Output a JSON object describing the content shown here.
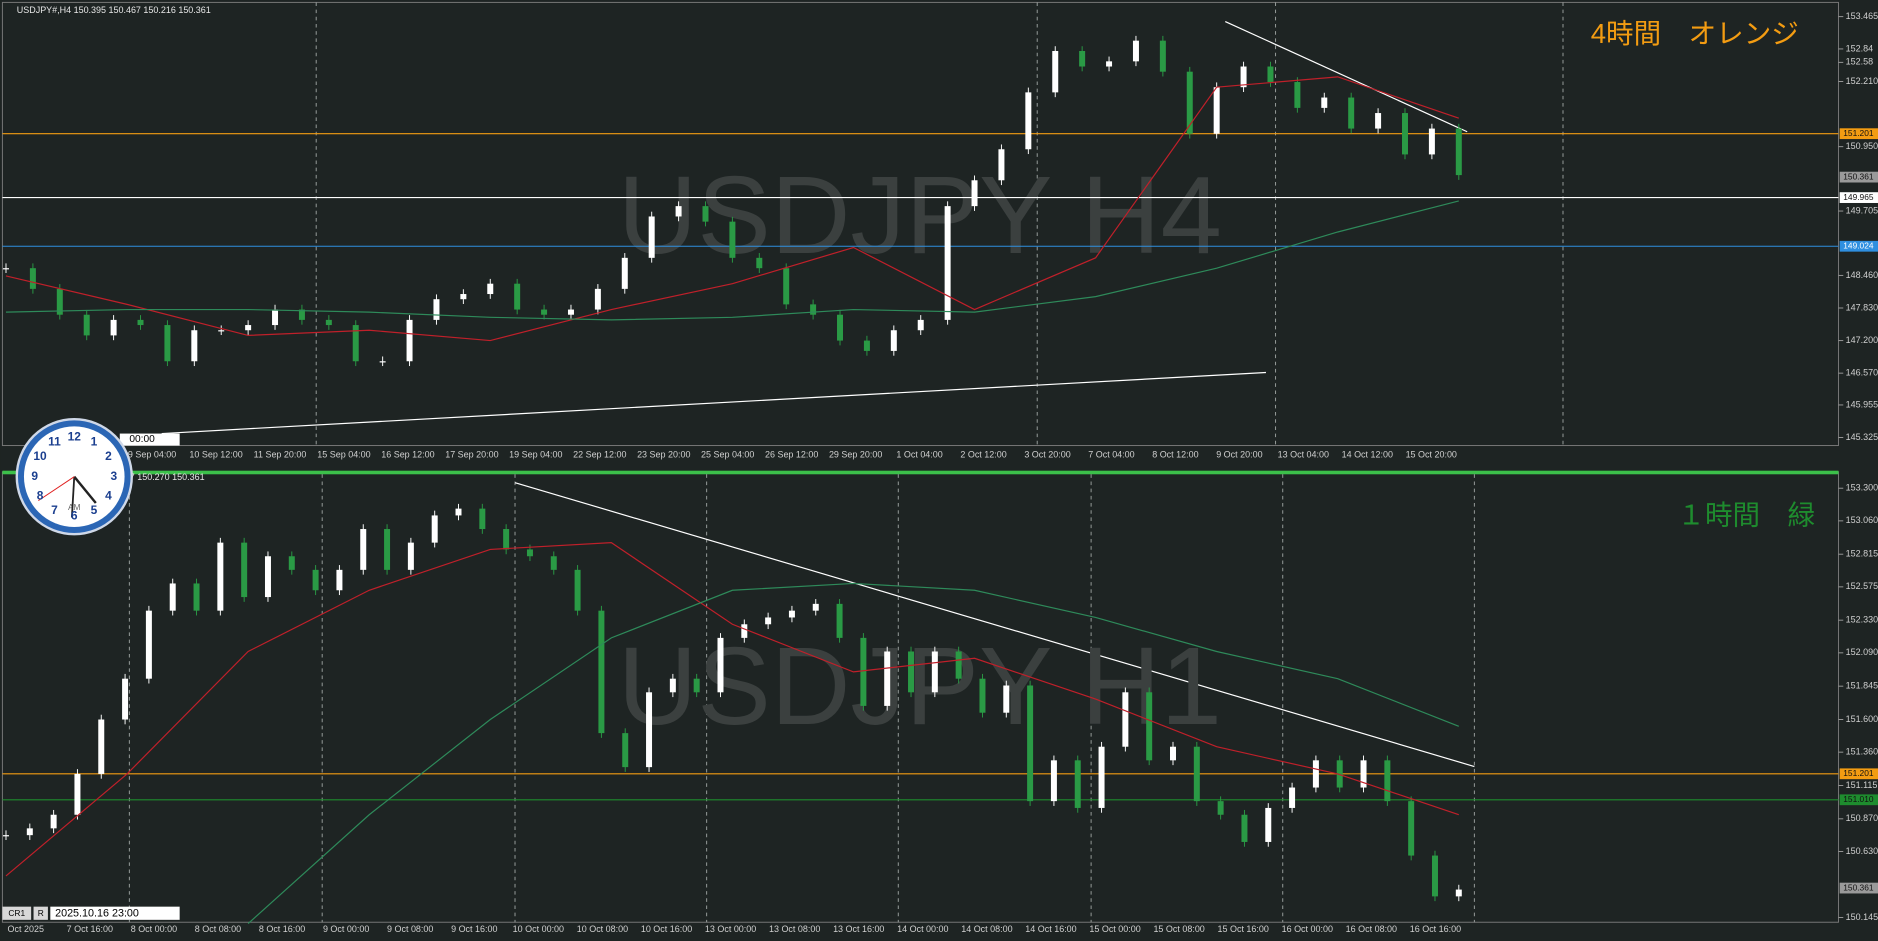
{
  "chart_data": [
    {
      "type": "candlestick",
      "header": "USDJPY#,H4  150.395 150.467 150.216 150.361",
      "watermark": "USDJPY H4",
      "annotation": "4時間　オレンジ",
      "annotation_color": "#f39c12",
      "ylim": [
        145.17,
        153.74
      ],
      "yticks": [
        153.465,
        152.84,
        {
          "value": 152.21,
          "label": "152.210"
        },
        152.58,
        {
          "value": 150.95,
          "label": "150.950"
        },
        149.705,
        {
          "value": 148.46,
          "label": "148.460"
        },
        {
          "value": 147.83,
          "label": "147.830"
        },
        {
          "value": 147.2,
          "label": "147.200"
        },
        {
          "value": 146.57,
          "label": "146.570"
        },
        145.955,
        145.325
      ],
      "levels": [
        {
          "price": 151.201,
          "color": "#f39c12"
        },
        {
          "price": 149.965,
          "color": "#ffffff"
        },
        {
          "price": 149.024,
          "color": "#2f8fe0"
        },
        {
          "price": 150.361,
          "color": "#9a9a9a"
        }
      ],
      "xlabels": [
        "9 Sep 04:00",
        "10 Sep 12:00",
        "11 Sep 20:00",
        "15 Sep 04:00",
        "16 Sep 12:00",
        "17 Sep 20:00",
        "19 Sep 04:00",
        "22 Sep 12:00",
        "23 Sep 20:00",
        "25 Sep 04:00",
        "26 Sep 12:00",
        "29 Sep 20:00",
        "1 Oct 04:00",
        "2 Oct 12:00",
        "3 Oct 20:00",
        "7 Oct 04:00",
        "8 Oct 12:00",
        "9 Oct 20:00",
        "13 Oct 04:00",
        "14 Oct 12:00",
        "15 Oct 20:00"
      ],
      "closes": [
        148.6,
        148.2,
        147.7,
        147.3,
        147.6,
        147.5,
        146.8,
        147.4,
        147.4,
        147.5,
        147.8,
        147.6,
        147.5,
        146.8,
        146.8,
        147.6,
        148.0,
        148.1,
        148.3,
        147.8,
        147.7,
        147.8,
        148.2,
        148.8,
        149.6,
        149.8,
        149.5,
        148.8,
        148.6,
        147.9,
        147.7,
        147.2,
        147.0,
        147.4,
        147.6,
        149.8,
        150.3,
        150.9,
        152.0,
        152.8,
        152.5,
        152.6,
        153.0,
        152.4,
        151.2,
        152.1,
        152.5,
        152.2,
        151.7,
        151.9,
        151.3,
        151.6,
        150.8,
        151.3,
        150.4
      ],
      "ma_fast": [
        148.45,
        147.9,
        147.3,
        147.4,
        147.2,
        147.8,
        148.3,
        149.0,
        147.8,
        148.8,
        152.1,
        152.3,
        151.5
      ],
      "ma_slow": [
        147.75,
        147.8,
        147.8,
        147.75,
        147.65,
        147.6,
        147.65,
        147.8,
        147.75,
        148.05,
        148.6,
        149.3,
        149.9
      ]
    },
    {
      "type": "candlestick",
      "header": "397 150.270 150.361",
      "watermark": "USDJPY H1",
      "annotation": "１時間　緑",
      "annotation_color": "#1e8c2e",
      "ylim": [
        150.11,
        153.42
      ],
      "yticks": [
        {
          "value": 153.3,
          "label": "153.300"
        },
        {
          "value": 153.06,
          "label": "153.060"
        },
        152.815,
        152.575,
        {
          "value": 152.33,
          "label": "152.330"
        },
        {
          "value": 152.09,
          "label": "152.090"
        },
        151.845,
        {
          "value": 151.6,
          "label": "151.600"
        },
        {
          "value": 151.36,
          "label": "151.360"
        },
        151.115,
        {
          "value": 150.87,
          "label": "150.870"
        },
        {
          "value": 150.63,
          "label": "150.630"
        },
        150.145
      ],
      "levels": [
        {
          "price": 151.201,
          "color": "#f39c12"
        },
        {
          "price": 151.01,
          "color": "#1e8c2e",
          "label": "151.010"
        },
        {
          "price": 150.361,
          "color": "#9a9a9a"
        }
      ],
      "xlabels": [
        "Oct 2025",
        "7 Oct 16:00",
        "8 Oct 00:00",
        "8 Oct 08:00",
        "8 Oct 16:00",
        "9 Oct 00:00",
        "9 Oct 08:00",
        "9 Oct 16:00",
        "10 Oct 00:00",
        "10 Oct 08:00",
        "10 Oct 16:00",
        "13 Oct 00:00",
        "13 Oct 08:00",
        "13 Oct 16:00",
        "14 Oct 00:00",
        "14 Oct 08:00",
        "14 Oct 16:00",
        "15 Oct 00:00",
        "15 Oct 08:00",
        "15 Oct 16:00",
        "16 Oct 00:00",
        "16 Oct 08:00",
        "16 Oct 16:00"
      ],
      "closes": [
        150.75,
        150.8,
        150.9,
        151.2,
        151.6,
        151.9,
        152.4,
        152.6,
        152.4,
        152.9,
        152.5,
        152.8,
        152.7,
        152.55,
        152.7,
        153.0,
        152.7,
        152.9,
        153.1,
        153.15,
        153.0,
        152.85,
        152.8,
        152.7,
        152.4,
        151.5,
        151.25,
        151.8,
        151.9,
        151.8,
        152.2,
        152.3,
        152.35,
        152.4,
        152.45,
        152.2,
        151.7,
        152.1,
        151.8,
        152.1,
        151.9,
        151.65,
        151.85,
        151.0,
        151.3,
        150.95,
        151.4,
        151.8,
        151.3,
        151.4,
        151.0,
        150.9,
        150.7,
        150.95,
        151.1,
        151.3,
        151.1,
        151.3,
        151.0,
        150.6,
        150.3,
        150.35
      ],
      "ma_fast": [
        150.45,
        151.2,
        152.1,
        152.55,
        152.85,
        152.9,
        152.3,
        151.95,
        152.05,
        151.75,
        151.4,
        151.2,
        150.9
      ],
      "ma_slow": [
        null,
        null,
        150.1,
        150.9,
        151.6,
        152.2,
        152.55,
        152.6,
        152.55,
        152.35,
        152.1,
        151.9,
        151.55
      ]
    }
  ],
  "status": {
    "tab": "CR1",
    "mode": "R",
    "time": "2025.10.16 23:00",
    "top_time": "00:00"
  },
  "clock": {
    "numerals": [
      "12",
      "1",
      "2",
      "3",
      "4",
      "5",
      "6",
      "7",
      "8",
      "9",
      "10",
      "11"
    ],
    "label": "AM"
  }
}
